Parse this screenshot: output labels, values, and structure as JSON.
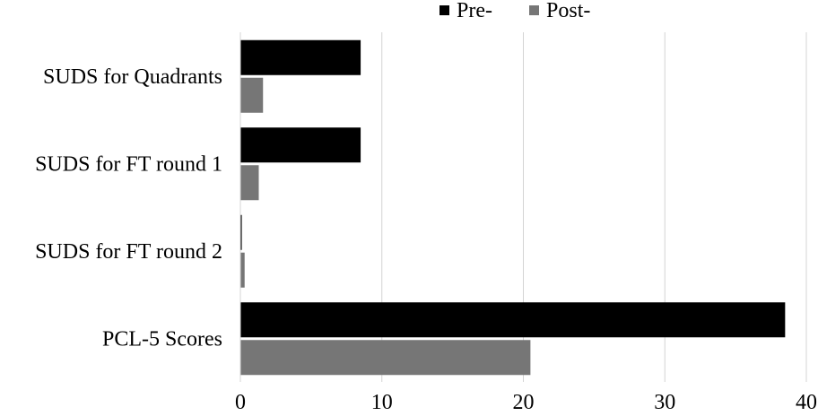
{
  "chart_data": {
    "type": "bar",
    "orientation": "horizontal",
    "categories": [
      "SUDS for Quadrants",
      "SUDS for FT round 1",
      "SUDS for FT round 2",
      "PCL-5 Scores"
    ],
    "series": [
      {
        "name": "Pre-",
        "color": "#000000",
        "values": [
          8.5,
          8.5,
          0.1,
          38.5
        ]
      },
      {
        "name": "Post-",
        "color": "#767676",
        "values": [
          1.6,
          1.3,
          0.3,
          20.5
        ]
      }
    ],
    "xlim": [
      0,
      40
    ],
    "xticks": [
      0,
      10,
      20,
      30,
      40
    ],
    "grid": true,
    "legend": "top-right",
    "title": "",
    "xlabel": "",
    "ylabel": ""
  }
}
